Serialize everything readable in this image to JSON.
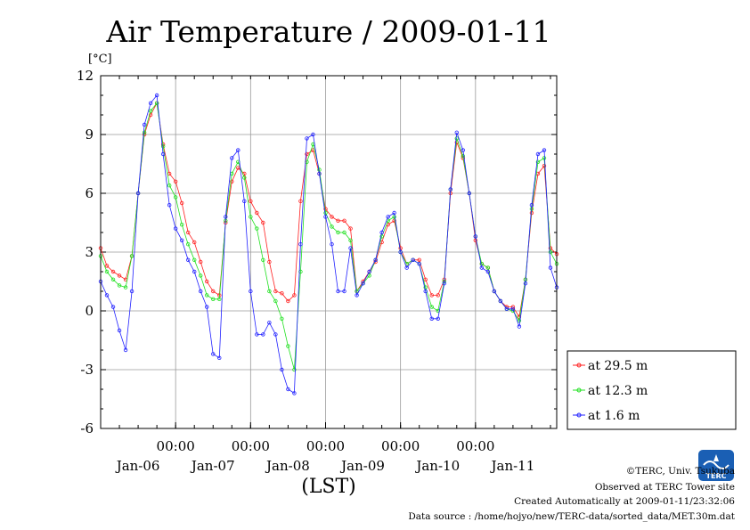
{
  "chart_data": {
    "type": "line",
    "title": "Air Temperature / 2009-01-11",
    "ylabel": "[°C]",
    "xlabel": "(LST)",
    "ylim": [
      -6,
      12
    ],
    "yticks": [
      12,
      9,
      6,
      3,
      0,
      -3,
      -6
    ],
    "xlim_hours": [
      0,
      146
    ],
    "x_time_labels": [
      "00:00",
      "00:00",
      "00:00",
      "00:00",
      "00:00"
    ],
    "x_date_labels": [
      "Jan-06",
      "Jan-07",
      "Jan-08",
      "Jan-09",
      "Jan-10",
      "Jan-11"
    ],
    "grid": true,
    "legend_position": "right-bottom outside",
    "series": [
      {
        "name": "at 29.5 m",
        "color": "#ff2020",
        "x": [
          0,
          2,
          4,
          6,
          8,
          10,
          12,
          14,
          16,
          18,
          20,
          22,
          24,
          26,
          28,
          30,
          32,
          34,
          36,
          38,
          40,
          42,
          44,
          46,
          48,
          50,
          52,
          54,
          56,
          58,
          60,
          62,
          64,
          66,
          68,
          70,
          72,
          74,
          76,
          78,
          80,
          82,
          84,
          86,
          88,
          90,
          92,
          94,
          96,
          98,
          100,
          102,
          104,
          106,
          108,
          110,
          112,
          114,
          116,
          118,
          120,
          122,
          124,
          126,
          128,
          130,
          132,
          134,
          136,
          138,
          140,
          142,
          144,
          146
        ],
        "values": [
          3.2,
          2.3,
          2.0,
          1.8,
          1.6,
          2.8,
          6.0,
          9.0,
          10.0,
          10.6,
          8.5,
          7.0,
          6.6,
          5.5,
          4.0,
          3.5,
          2.5,
          1.5,
          1.0,
          0.8,
          4.5,
          6.6,
          7.3,
          7.0,
          5.6,
          5.0,
          4.5,
          2.5,
          1.0,
          0.9,
          0.5,
          0.8,
          5.6,
          8.0,
          8.2,
          7.0,
          5.2,
          4.8,
          4.6,
          4.6,
          4.2,
          1.0,
          1.5,
          2.0,
          2.5,
          3.5,
          4.4,
          4.6,
          3.2,
          2.4,
          2.6,
          2.6,
          1.6,
          0.8,
          0.8,
          1.6,
          6.0,
          8.6,
          7.8,
          6.0,
          3.6,
          2.4,
          2.2,
          1.0,
          0.5,
          0.2,
          0.2,
          -0.3,
          1.6,
          5.0,
          7.0,
          7.4,
          3.2,
          2.9
        ]
      },
      {
        "name": "at 12.3 m",
        "color": "#20e020",
        "x": [
          0,
          2,
          4,
          6,
          8,
          10,
          12,
          14,
          16,
          18,
          20,
          22,
          24,
          26,
          28,
          30,
          32,
          34,
          36,
          38,
          40,
          42,
          44,
          46,
          48,
          50,
          52,
          54,
          56,
          58,
          60,
          62,
          64,
          66,
          68,
          70,
          72,
          74,
          76,
          78,
          80,
          82,
          84,
          86,
          88,
          90,
          92,
          94,
          96,
          98,
          100,
          102,
          104,
          106,
          108,
          110,
          112,
          114,
          116,
          118,
          120,
          122,
          124,
          126,
          128,
          130,
          132,
          134,
          136,
          138,
          140,
          142,
          144,
          146
        ],
        "values": [
          2.8,
          2.0,
          1.6,
          1.3,
          1.2,
          2.8,
          6.0,
          9.1,
          10.2,
          10.6,
          8.4,
          6.4,
          5.8,
          4.4,
          3.4,
          2.6,
          1.8,
          0.8,
          0.6,
          0.6,
          4.6,
          7.0,
          7.6,
          6.8,
          4.8,
          4.2,
          2.6,
          1.0,
          0.5,
          -0.4,
          -1.8,
          -3.0,
          2.0,
          7.6,
          8.5,
          7.2,
          5.0,
          4.3,
          4.0,
          4.0,
          3.6,
          1.0,
          1.4,
          1.8,
          2.6,
          3.8,
          4.6,
          4.8,
          3.0,
          2.4,
          2.6,
          2.4,
          1.2,
          0.2,
          0.0,
          1.5,
          6.2,
          8.8,
          7.9,
          6.0,
          3.8,
          2.4,
          2.2,
          1.0,
          0.5,
          0.1,
          0.0,
          -0.5,
          1.6,
          5.2,
          7.6,
          7.8,
          3.0,
          2.4
        ]
      },
      {
        "name": "at 1.6 m",
        "color": "#2020ff",
        "x": [
          0,
          2,
          4,
          6,
          8,
          10,
          12,
          14,
          16,
          18,
          20,
          22,
          24,
          26,
          28,
          30,
          32,
          34,
          36,
          38,
          40,
          42,
          44,
          46,
          48,
          50,
          52,
          54,
          56,
          58,
          60,
          62,
          64,
          66,
          68,
          70,
          72,
          74,
          76,
          78,
          80,
          82,
          84,
          86,
          88,
          90,
          92,
          94,
          96,
          98,
          100,
          102,
          104,
          106,
          108,
          110,
          112,
          114,
          116,
          118,
          120,
          122,
          124,
          126,
          128,
          130,
          132,
          134,
          136,
          138,
          140,
          142,
          144,
          146
        ],
        "values": [
          1.5,
          0.8,
          0.2,
          -1.0,
          -2.0,
          1.0,
          6.0,
          9.5,
          10.6,
          11.0,
          8.0,
          5.4,
          4.2,
          3.6,
          2.6,
          2.0,
          1.0,
          0.2,
          -2.2,
          -2.4,
          4.8,
          7.8,
          8.2,
          5.6,
          1.0,
          -1.2,
          -1.2,
          -0.6,
          -1.2,
          -3.0,
          -4.0,
          -4.2,
          3.4,
          8.8,
          9.0,
          7.0,
          4.8,
          3.4,
          1.0,
          1.0,
          3.2,
          0.8,
          1.4,
          2.0,
          2.6,
          4.0,
          4.8,
          5.0,
          3.0,
          2.2,
          2.6,
          2.4,
          1.0,
          -0.4,
          -0.4,
          1.4,
          6.2,
          9.1,
          8.2,
          6.0,
          3.8,
          2.2,
          2.0,
          1.0,
          0.5,
          0.1,
          0.1,
          -0.8,
          1.4,
          5.4,
          8.0,
          8.2,
          2.2,
          1.2
        ]
      }
    ]
  },
  "credits": {
    "copyright": "©TERC, Univ. Tsukuba",
    "site": "Observed at TERC Tower site",
    "created": "Created Automatically at 2009-01-11/23:32:06",
    "source": "Data source : /home/hojyo/new/TERC-data/sorted_data/MET.30m.dat"
  },
  "logo": {
    "text": "TERC",
    "color": "#1a5fb4"
  }
}
